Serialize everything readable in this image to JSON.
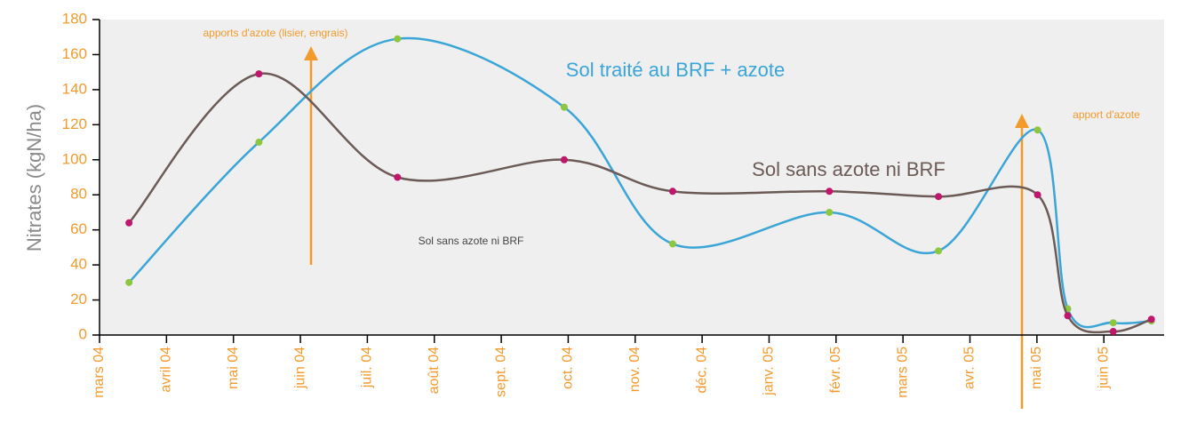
{
  "chart_data": {
    "type": "line",
    "ylabel": "Nitrates (kgN/ha)",
    "x": [
      0.44,
      2.38,
      4.45,
      6.94,
      8.56,
      10.9,
      12.53,
      14.01,
      14.46,
      15.14,
      15.71
    ],
    "series": [
      {
        "name": "Sol traité au BRF + azote",
        "color": "#3aa5d6",
        "marker_color": "#8dc63f",
        "values": [
          30,
          110,
          169,
          130,
          52,
          70,
          48,
          117,
          15,
          7,
          8
        ]
      },
      {
        "name": "Sol sans azote ni BRF",
        "color": "#6b5a55",
        "marker_color": "#c0166b",
        "values": [
          64,
          149,
          90,
          100,
          82,
          82,
          79,
          80,
          11,
          2,
          9
        ]
      }
    ],
    "annotations": [
      "apports d'azote (lisier, engrais)",
      "apport d'azote",
      "Sol sans azote ni BRF"
    ],
    "xlim": [
      0,
      15.9
    ],
    "xticks": [
      {
        "value": 0,
        "label": "mars 04"
      },
      {
        "value": 1,
        "label": "avril 04"
      },
      {
        "value": 2,
        "label": "mai 04"
      },
      {
        "value": 3,
        "label": "juin 04"
      },
      {
        "value": 4,
        "label": "juil. 04"
      },
      {
        "value": 5,
        "label": "août 04"
      },
      {
        "value": 6,
        "label": "sept. 04"
      },
      {
        "value": 7,
        "label": "oct. 04"
      },
      {
        "value": 8,
        "label": "nov. 04"
      },
      {
        "value": 9,
        "label": "déc. 04"
      },
      {
        "value": 10,
        "label": "janv. 05"
      },
      {
        "value": 11,
        "label": "févr. 05"
      },
      {
        "value": 12,
        "label": "mars 05"
      },
      {
        "value": 13,
        "label": "avr. 05"
      },
      {
        "value": 14,
        "label": "mai 05"
      },
      {
        "value": 15,
        "label": "juin 05"
      }
    ],
    "ylim": [
      0,
      180
    ],
    "yticks": [
      0,
      20,
      40,
      60,
      80,
      100,
      120,
      140,
      160,
      180
    ]
  }
}
